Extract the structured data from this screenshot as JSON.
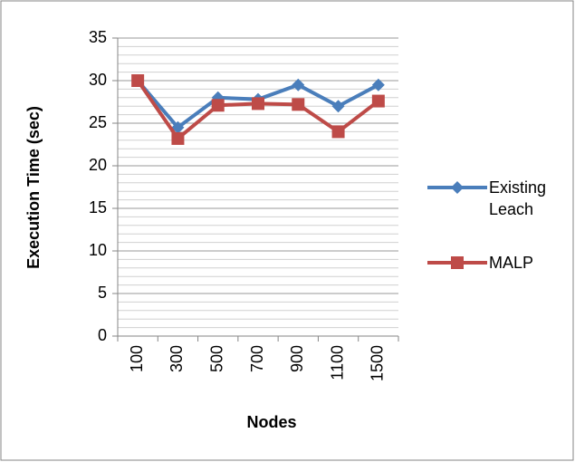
{
  "chart_data": {
    "type": "line",
    "x_label": "Nodes",
    "y_label": "Execution Time (sec)",
    "categories": [
      "100",
      "300",
      "500",
      "700",
      "900",
      "1100",
      "1500"
    ],
    "series": [
      {
        "name": "Existing Leach",
        "color": "#4a7ebb",
        "marker": "diamond",
        "values": [
          30,
          24.5,
          28,
          27.8,
          29.5,
          27,
          29.5
        ]
      },
      {
        "name": "MALP",
        "color": "#be4b48",
        "marker": "square",
        "values": [
          30,
          23.2,
          27.1,
          27.3,
          27.2,
          24,
          27.6
        ]
      }
    ],
    "ylim": [
      0,
      35
    ],
    "yticks": [
      0,
      5,
      10,
      15,
      20,
      25,
      30,
      35
    ],
    "grid": true,
    "minor_grid_step": 1,
    "legend": "right"
  }
}
